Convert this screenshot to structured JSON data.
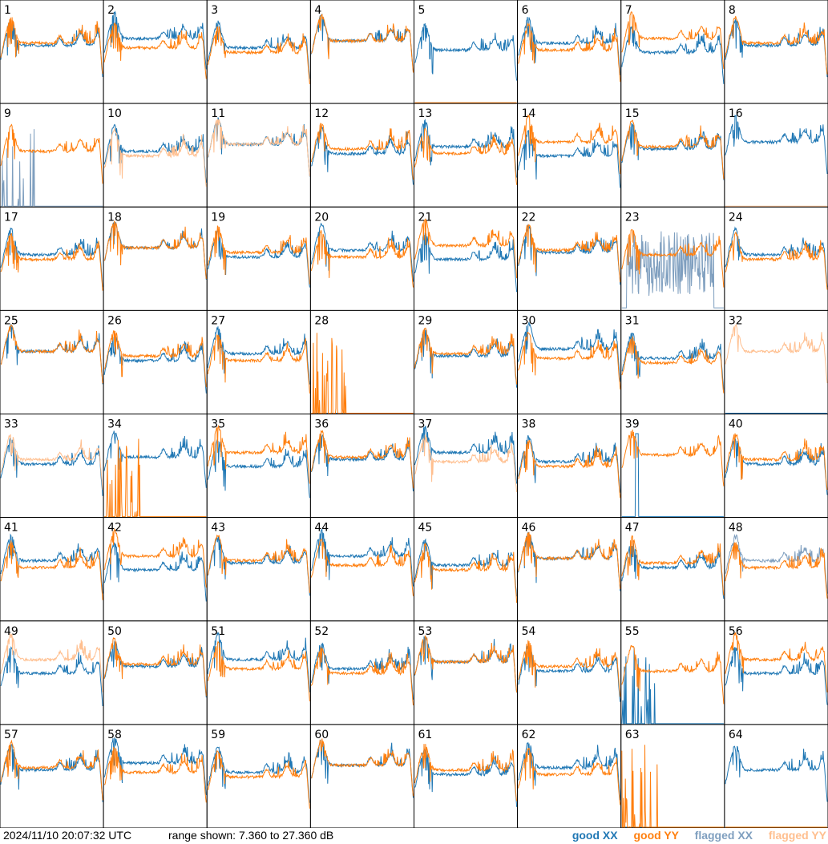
{
  "chart_data": {
    "type": "line",
    "panel_count": 64,
    "panel_labels": [
      "1",
      "2",
      "3",
      "4",
      "5",
      "6",
      "7",
      "8",
      "9",
      "10",
      "11",
      "12",
      "13",
      "14",
      "15",
      "16",
      "17",
      "18",
      "19",
      "20",
      "21",
      "22",
      "23",
      "24",
      "25",
      "26",
      "27",
      "28",
      "29",
      "30",
      "31",
      "32",
      "33",
      "34",
      "35",
      "36",
      "37",
      "38",
      "39",
      "40",
      "41",
      "42",
      "43",
      "44",
      "45",
      "46",
      "47",
      "48",
      "49",
      "50",
      "51",
      "52",
      "53",
      "54",
      "55",
      "56",
      "57",
      "58",
      "59",
      "60",
      "61",
      "62",
      "63",
      "64"
    ],
    "ylim_db": [
      7.36,
      27.36
    ],
    "grid": false,
    "legend_placement": "bottom-right",
    "series": [
      {
        "name": "good XX",
        "color": "#1f77b4"
      },
      {
        "name": "good YY",
        "color": "#ff7f0e"
      },
      {
        "name": "flagged XX",
        "color": "#7f9fbf"
      },
      {
        "name": "flagged YY",
        "color": "#ffbf8f"
      }
    ],
    "flagged_xx_panels": [
      9,
      23,
      48
    ],
    "flagged_yy_panels": [
      10,
      11,
      16,
      32,
      33,
      37,
      49
    ],
    "panel_status": {
      "5": {
        "yy": "flat"
      },
      "9": {
        "xx": "spikes"
      },
      "16": {
        "yy": "flat"
      },
      "23": {
        "xx": "noise"
      },
      "28": {
        "xx": "flat",
        "yy": "spikes"
      },
      "32": {
        "xx": "flat"
      },
      "34": {
        "yy": "spikes"
      },
      "39": {
        "xx": "spike"
      },
      "55": {
        "xx": "spikes"
      },
      "63": {
        "xx": "flat",
        "yy": "spikes"
      },
      "64": {
        "yy": "flat"
      }
    }
  },
  "footer": {
    "timestamp": "2024/11/10 20:07:32 UTC",
    "range": "range shown: 7.360 to 27.360 dB",
    "legend": {
      "good_xx": "good XX",
      "good_yy": "good YY",
      "flagged_xx": "flagged XX",
      "flagged_yy": "flagged YY"
    }
  },
  "colors": {
    "good_xx": "#1f77b4",
    "good_yy": "#ff7f0e",
    "flagged_xx": "#7f9fbf",
    "flagged_yy": "#ffbf8f"
  }
}
